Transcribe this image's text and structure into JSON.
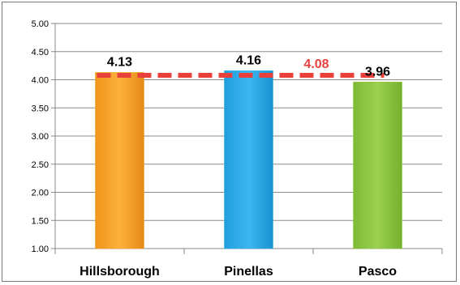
{
  "chart_data": {
    "type": "bar",
    "categories": [
      "Hillsborough",
      "Pinellas",
      "Pasco"
    ],
    "values": [
      4.13,
      4.16,
      3.96
    ],
    "data_labels": [
      "4.13",
      "4.16",
      "3.96"
    ],
    "bar_colors": [
      "#f7a21b",
      "#2aa9e8",
      "#8cc63f"
    ],
    "ylim": [
      1.0,
      5.0
    ],
    "yticks": [
      "1.00",
      "1.50",
      "2.00",
      "2.50",
      "3.00",
      "3.50",
      "4.00",
      "4.50",
      "5.00"
    ],
    "grid": true,
    "reference_line": {
      "value": 4.08,
      "label": "4.08",
      "color": "#e8413c",
      "style": "dashed"
    }
  }
}
